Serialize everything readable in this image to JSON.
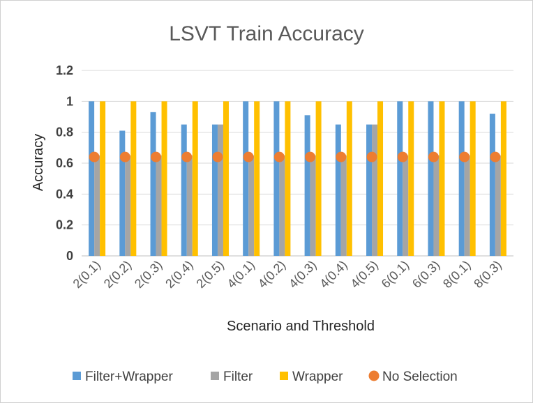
{
  "chart_data": {
    "type": "bar",
    "title": "LSVT Train Accuracy",
    "xlabel": "Scenario and Threshold",
    "ylabel": "Accuracy",
    "ylim": [
      0,
      1.2
    ],
    "yticks": [
      "0",
      "0.2",
      "0.4",
      "0.6",
      "0.8",
      "1",
      "1.2"
    ],
    "grid": true,
    "legend_position": "bottom",
    "categories": [
      "2(0.1)",
      "2(0.2)",
      "2(0.3)",
      "2(0.4)",
      "2(0.5)",
      "4(0.1)",
      "4(0.2)",
      "4(0.3)",
      "4(0.4)",
      "4(0.5)",
      "6(0.1)",
      "6(0.3)",
      "8(0.1)",
      "8(0.3)"
    ],
    "series": [
      {
        "name": "Filter+Wrapper",
        "kind": "bar",
        "color": "#5B9BD5",
        "values": [
          1,
          0.81,
          0.93,
          0.85,
          0.85,
          1,
          1,
          0.91,
          0.85,
          0.85,
          1,
          1,
          1,
          0.92
        ]
      },
      {
        "name": "Filter",
        "kind": "bar",
        "color": "#A5A5A5",
        "values": [
          0.65,
          0.65,
          0.65,
          0.65,
          0.85,
          0.65,
          0.65,
          0.65,
          0.65,
          0.85,
          0.65,
          0.65,
          0.65,
          0.65
        ]
      },
      {
        "name": "Wrapper",
        "kind": "bar",
        "color": "#FFC000",
        "values": [
          1,
          1,
          1,
          1,
          1,
          1,
          1,
          1,
          1,
          1,
          1,
          1,
          1,
          1
        ]
      },
      {
        "name": "No Selection",
        "kind": "marker",
        "color": "#ED7D31",
        "values": [
          0.64,
          0.64,
          0.64,
          0.64,
          0.64,
          0.64,
          0.64,
          0.64,
          0.64,
          0.64,
          0.64,
          0.64,
          0.64,
          0.64
        ]
      }
    ]
  }
}
